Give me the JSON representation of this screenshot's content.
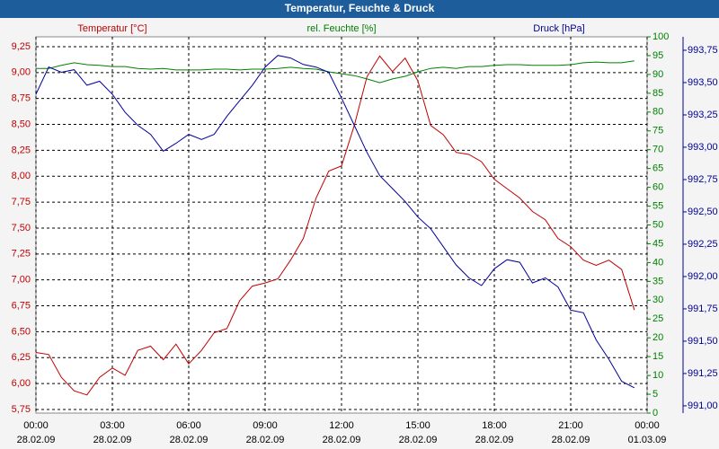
{
  "chart_data": {
    "type": "line",
    "title": "Temperatur, Feuchte & Druck",
    "ylabel": "Temperatur [°C]",
    "y2label": "rel. Feuchte [%]",
    "y3label": "Druck [hPa]",
    "x": [
      0,
      0.5,
      1,
      1.5,
      2,
      2.5,
      3,
      3.5,
      4,
      4.5,
      5,
      5.5,
      6,
      6.5,
      7,
      7.5,
      8,
      8.5,
      9,
      9.5,
      10,
      10.5,
      11,
      11.5,
      12,
      12.5,
      13,
      13.5,
      14,
      14.5,
      15,
      15.5,
      16,
      16.5,
      17,
      17.5,
      18,
      18.5,
      19,
      19.5,
      20,
      20.5,
      21,
      21.5,
      22,
      22.5,
      23,
      23.5
    ],
    "xlim": [
      0,
      24
    ],
    "xticks": [
      {
        "value": 0,
        "label": "00:00"
      },
      {
        "value": 3,
        "label": "03:00"
      },
      {
        "value": 6,
        "label": "06:00"
      },
      {
        "value": 9,
        "label": "09:00"
      },
      {
        "value": 12,
        "label": "12:00"
      },
      {
        "value": 15,
        "label": "15:00"
      },
      {
        "value": 18,
        "label": "18:00"
      },
      {
        "value": 21,
        "label": "21:00"
      },
      {
        "value": 24,
        "label": "00:00"
      }
    ],
    "xtick_dates": [
      "28.02.09",
      "28.02.09",
      "28.02.09",
      "28.02.09",
      "28.02.09",
      "28.02.09",
      "28.02.09",
      "28.02.09",
      "01.03.09"
    ],
    "ylim": [
      5.715,
      9.345
    ],
    "yticks": [
      {
        "value": 5.75,
        "label": "5,75"
      },
      {
        "value": 6,
        "label": "6,00"
      },
      {
        "value": 6.25,
        "label": "6,25"
      },
      {
        "value": 6.5,
        "label": "6,50"
      },
      {
        "value": 6.75,
        "label": "6,75"
      },
      {
        "value": 7,
        "label": "7,00"
      },
      {
        "value": 7.25,
        "label": "7,25"
      },
      {
        "value": 7.5,
        "label": "7,50"
      },
      {
        "value": 7.75,
        "label": "7,75"
      },
      {
        "value": 8,
        "label": "8,00"
      },
      {
        "value": 8.25,
        "label": "8,25"
      },
      {
        "value": 8.5,
        "label": "8,50"
      },
      {
        "value": 8.75,
        "label": "8,75"
      },
      {
        "value": 9,
        "label": "9,00"
      },
      {
        "value": 9.25,
        "label": "9,25"
      }
    ],
    "y2lim": [
      0,
      100
    ],
    "y2ticks": [
      0,
      5,
      10,
      15,
      20,
      25,
      30,
      35,
      40,
      45,
      50,
      55,
      60,
      65,
      70,
      75,
      80,
      85,
      90,
      95,
      100
    ],
    "y3lim": [
      990.944,
      993.854
    ],
    "y3ticks": [
      {
        "value": 991,
        "label": "991,00"
      },
      {
        "value": 991.25,
        "label": "991,25"
      },
      {
        "value": 991.5,
        "label": "991,50"
      },
      {
        "value": 991.75,
        "label": "991,75"
      },
      {
        "value": 992,
        "label": "992,00"
      },
      {
        "value": 992.25,
        "label": "992,25"
      },
      {
        "value": 992.5,
        "label": "992,50"
      },
      {
        "value": 992.75,
        "label": "992,75"
      },
      {
        "value": 993,
        "label": "993,00"
      },
      {
        "value": 993.25,
        "label": "993,25"
      },
      {
        "value": 993.5,
        "label": "993,50"
      },
      {
        "value": 993.75,
        "label": "993,75"
      }
    ],
    "grid": true,
    "series": [
      {
        "name": "Temperatur",
        "color": "#c00000",
        "axis": "y",
        "values": [
          6.3,
          6.28,
          6.06,
          5.93,
          5.89,
          6.06,
          6.15,
          6.08,
          6.32,
          6.36,
          6.23,
          6.38,
          6.19,
          6.32,
          6.49,
          6.53,
          6.8,
          6.94,
          6.97,
          7.01,
          7.19,
          7.4,
          7.79,
          8.05,
          8.1,
          8.49,
          8.96,
          9.16,
          9.01,
          9.14,
          8.92,
          8.49,
          8.4,
          8.23,
          8.21,
          8.14,
          7.97,
          7.88,
          7.79,
          7.66,
          7.58,
          7.4,
          7.32,
          7.19,
          7.14,
          7.19,
          7.1,
          6.71
        ]
      },
      {
        "name": "Feuchte",
        "color": "#008000",
        "axis": "y2",
        "values": [
          91.6,
          91.6,
          92.4,
          93.1,
          92.6,
          92.4,
          92.1,
          92.1,
          91.6,
          91.4,
          91.6,
          91.2,
          91.2,
          91.2,
          91.4,
          91.4,
          91.2,
          91.4,
          91.4,
          91.6,
          91.9,
          91.6,
          91.4,
          90.7,
          90.2,
          89.7,
          88.8,
          87.8,
          88.8,
          89.5,
          90.7,
          91.6,
          91.9,
          91.6,
          92.1,
          92.1,
          92.4,
          92.6,
          92.6,
          92.4,
          92.4,
          92.4,
          92.6,
          93.1,
          93.3,
          93.1,
          93.1,
          93.6
        ]
      },
      {
        "name": "Druck",
        "color": "#000099",
        "axis": "y3",
        "values": [
          993.41,
          993.62,
          993.58,
          993.6,
          993.48,
          993.51,
          993.41,
          993.27,
          993.17,
          993.1,
          992.97,
          993.03,
          993.1,
          993.06,
          993.1,
          993.24,
          993.36,
          993.48,
          993.62,
          993.71,
          993.69,
          993.64,
          993.62,
          993.58,
          993.38,
          993.17,
          992.96,
          992.78,
          992.68,
          992.58,
          992.46,
          992.37,
          992.23,
          992.09,
          991.99,
          991.93,
          992.06,
          992.13,
          992.11,
          991.95,
          991.99,
          991.92,
          991.74,
          991.72,
          991.51,
          991.36,
          991.19,
          991.14
        ]
      }
    ]
  }
}
